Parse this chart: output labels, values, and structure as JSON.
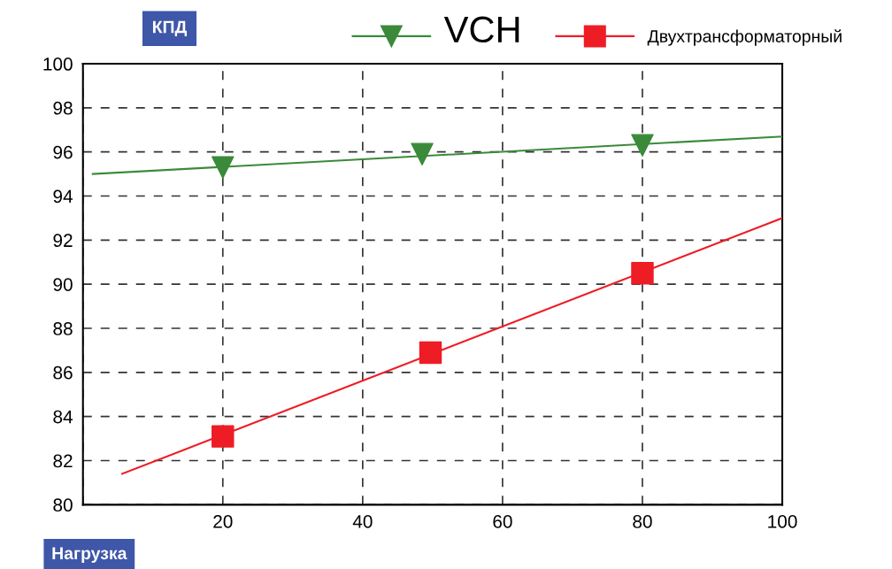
{
  "chart_data": {
    "type": "scatter",
    "xlabel": "Нагрузка",
    "ylabel": "КПД",
    "xlim": [
      0,
      100
    ],
    "xticks": [
      {
        "value": 0,
        "label": null
      },
      20,
      40,
      60,
      80,
      100
    ],
    "ylim": [
      80,
      100
    ],
    "yticks": [
      80,
      82,
      84,
      86,
      88,
      90,
      92,
      94,
      96,
      98,
      100
    ],
    "grid": true,
    "legend": "top",
    "line_style": "solid",
    "series": [
      {
        "name": "VCH",
        "color": "#3a8a3a",
        "marker": "triangle",
        "x": [
          20,
          48.5,
          80
        ],
        "values": [
          95.3,
          95.9,
          96.3
        ]
      },
      {
        "name": "Двухтрансформаторный",
        "color": "#ee1c25",
        "marker": "square",
        "x": [
          20,
          49.7,
          80
        ],
        "values": [
          83.1,
          86.9,
          90.5
        ]
      },
      {
        "type": "line",
        "color": "#3a8a3a",
        "x": [
          1.4,
          100
        ],
        "values": [
          95.0,
          96.7
        ]
      },
      {
        "type": "line",
        "color": "#ee1c25",
        "x": [
          5.6,
          100
        ],
        "values": [
          81.4,
          93.0
        ]
      }
    ]
  }
}
